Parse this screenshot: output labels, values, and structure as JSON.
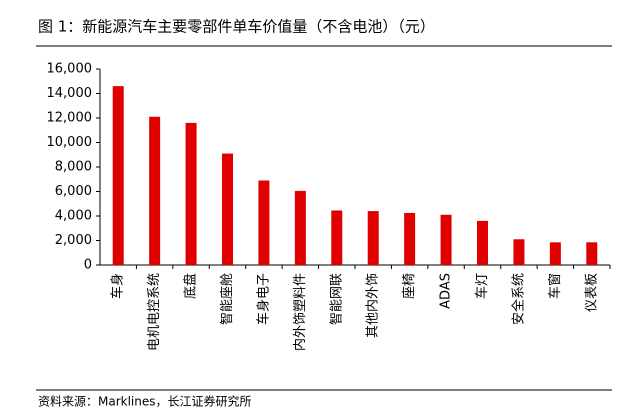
{
  "chart_data": {
    "type": "bar",
    "title": "图 1：新能源汽车主要零部件单车价值量（不含电池）（元）",
    "source": "资料来源：Marklines，长江证券研究所",
    "categories": [
      "车身",
      "电机电控系统",
      "底盘",
      "智能座舱",
      "车身电子",
      "内外饰塑料件",
      "智能网联",
      "其他内外饰",
      "座椅",
      "ADAS",
      "车灯",
      "安全系统",
      "车窗",
      "仪表板"
    ],
    "values": [
      14600,
      12100,
      11600,
      9100,
      6900,
      6050,
      4450,
      4400,
      4250,
      4100,
      3600,
      2100,
      1850,
      1850
    ],
    "color": "#e00000",
    "ylim": [
      0,
      16000
    ],
    "yticks": [
      0,
      {
        "value": 2000,
        "label": "2,000"
      },
      {
        "value": 4000,
        "label": "4,000"
      },
      {
        "value": 6000,
        "label": "6,000"
      },
      {
        "value": 8000,
        "label": "8,000"
      },
      {
        "value": 10000,
        "label": "10,000"
      },
      {
        "value": 12000,
        "label": "12,000"
      },
      {
        "value": 14000,
        "label": "14,000"
      },
      {
        "value": 16000,
        "label": "16,000"
      }
    ],
    "grid": false
  }
}
